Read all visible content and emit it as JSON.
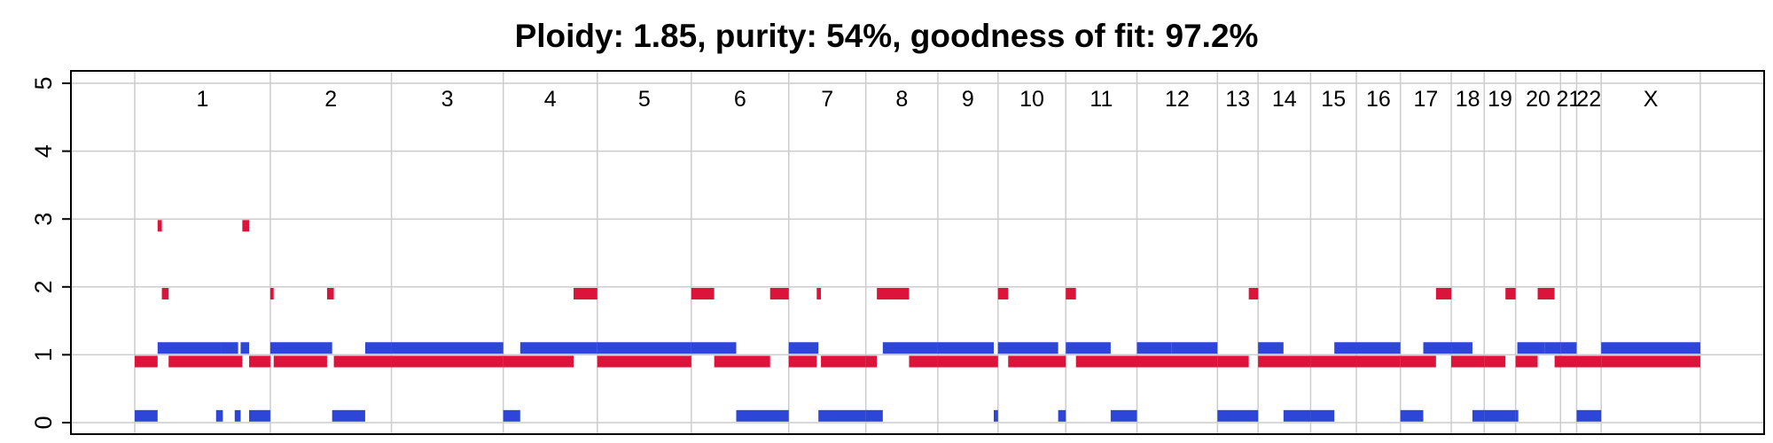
{
  "chart_data": {
    "type": "segments",
    "title": "Ploidy: 1.85, purity: 54%, goodness of fit: 97.2%",
    "ylim": [
      0,
      5
    ],
    "yticks": [
      "0",
      "1",
      "2",
      "3",
      "4",
      "5"
    ],
    "grid": true,
    "genome_bounds": [
      0,
      16
    ],
    "chromosomes": [
      {
        "label": "1",
        "start": 0.0,
        "end": 1.6
      },
      {
        "label": "2",
        "start": 1.6,
        "end": 3.03
      },
      {
        "label": "3",
        "start": 3.03,
        "end": 4.35
      },
      {
        "label": "4",
        "start": 4.35,
        "end": 5.46
      },
      {
        "label": "5",
        "start": 5.46,
        "end": 6.57
      },
      {
        "label": "6",
        "start": 6.57,
        "end": 7.72
      },
      {
        "label": "7",
        "start": 7.72,
        "end": 8.63
      },
      {
        "label": "8",
        "start": 8.63,
        "end": 9.48
      },
      {
        "label": "9",
        "start": 9.48,
        "end": 10.19
      },
      {
        "label": "10",
        "start": 10.19,
        "end": 10.99
      },
      {
        "label": "11",
        "start": 10.99,
        "end": 11.83
      },
      {
        "label": "12",
        "start": 11.83,
        "end": 12.78
      },
      {
        "label": "13",
        "start": 12.78,
        "end": 13.26
      },
      {
        "label": "14",
        "start": 13.26,
        "end": 13.88
      },
      {
        "label": "15",
        "start": 13.88,
        "end": 14.42
      },
      {
        "label": "16",
        "start": 14.42,
        "end": 14.94
      },
      {
        "label": "17",
        "start": 14.94,
        "end": 15.54
      },
      {
        "label": "18",
        "start": 15.54,
        "end": 15.93
      },
      {
        "label": "19",
        "start": 15.93,
        "end": 16.3
      },
      {
        "label": "20",
        "start": 16.3,
        "end": 16.83
      },
      {
        "label": "21",
        "start": 16.83,
        "end": 17.02
      },
      {
        "label": "22",
        "start": 17.02,
        "end": 17.31
      },
      {
        "label": "X",
        "start": 17.31,
        "end": 18.48
      }
    ],
    "series": [
      {
        "color": "#DC143C",
        "offset": -0.1,
        "segments": [
          [
            0.0,
            0.27,
            1
          ],
          [
            0.27,
            0.32,
            3
          ],
          [
            0.32,
            0.4,
            2
          ],
          [
            0.4,
            1.27,
            1
          ],
          [
            1.27,
            1.35,
            3
          ],
          [
            1.35,
            1.6,
            1
          ],
          [
            1.6,
            1.64,
            2
          ],
          [
            1.64,
            2.27,
            1
          ],
          [
            2.27,
            2.35,
            2
          ],
          [
            2.35,
            3.03,
            1
          ],
          [
            3.03,
            4.35,
            1
          ],
          [
            4.35,
            5.18,
            1
          ],
          [
            5.18,
            5.46,
            2
          ],
          [
            5.46,
            6.57,
            1
          ],
          [
            6.57,
            6.84,
            2
          ],
          [
            6.84,
            7.5,
            1
          ],
          [
            7.5,
            7.72,
            2
          ],
          [
            7.72,
            8.05,
            1
          ],
          [
            8.05,
            8.1,
            2
          ],
          [
            8.1,
            8.63,
            1
          ],
          [
            8.63,
            8.76,
            1
          ],
          [
            8.76,
            9.14,
            2
          ],
          [
            9.14,
            9.48,
            1
          ],
          [
            9.48,
            10.19,
            1
          ],
          [
            10.19,
            10.31,
            2
          ],
          [
            10.31,
            10.99,
            1
          ],
          [
            10.99,
            11.11,
            2
          ],
          [
            11.11,
            11.83,
            1
          ],
          [
            11.83,
            12.78,
            1
          ],
          [
            12.78,
            13.15,
            1
          ],
          [
            13.15,
            13.26,
            2
          ],
          [
            13.26,
            13.88,
            1
          ],
          [
            13.88,
            14.42,
            1
          ],
          [
            14.42,
            14.94,
            1
          ],
          [
            14.94,
            15.36,
            1
          ],
          [
            15.36,
            15.54,
            2
          ],
          [
            15.54,
            15.93,
            1
          ],
          [
            15.93,
            16.18,
            1
          ],
          [
            16.18,
            16.3,
            2
          ],
          [
            16.3,
            16.56,
            1
          ],
          [
            16.56,
            16.76,
            2
          ],
          [
            16.76,
            17.02,
            1
          ],
          [
            17.02,
            17.31,
            1
          ],
          [
            17.31,
            18.48,
            1
          ]
        ]
      },
      {
        "color": "#2D46D8",
        "offset": 0.1,
        "segments": [
          [
            0.0,
            0.27,
            0
          ],
          [
            0.27,
            1.02,
            1
          ],
          [
            0.96,
            1.04,
            0
          ],
          [
            1.02,
            1.22,
            1
          ],
          [
            1.18,
            1.25,
            0
          ],
          [
            1.25,
            1.35,
            1
          ],
          [
            1.35,
            1.6,
            0
          ],
          [
            1.6,
            2.33,
            1
          ],
          [
            2.33,
            2.72,
            0
          ],
          [
            2.72,
            3.03,
            1
          ],
          [
            3.03,
            4.35,
            1
          ],
          [
            4.35,
            4.55,
            0
          ],
          [
            4.55,
            5.46,
            1
          ],
          [
            5.46,
            6.57,
            1
          ],
          [
            6.57,
            7.1,
            1
          ],
          [
            7.1,
            7.72,
            0
          ],
          [
            7.72,
            8.07,
            1
          ],
          [
            8.07,
            8.63,
            0
          ],
          [
            8.63,
            8.83,
            0
          ],
          [
            8.83,
            9.48,
            1
          ],
          [
            9.48,
            10.14,
            1
          ],
          [
            10.14,
            10.19,
            0
          ],
          [
            10.19,
            10.9,
            1
          ],
          [
            10.9,
            10.99,
            0
          ],
          [
            10.99,
            11.52,
            1
          ],
          [
            11.52,
            11.83,
            0
          ],
          [
            11.83,
            12.24,
            1
          ],
          [
            12.24,
            12.78,
            1
          ],
          [
            12.78,
            13.26,
            0
          ],
          [
            13.26,
            13.56,
            1
          ],
          [
            13.56,
            13.88,
            0
          ],
          [
            13.88,
            14.16,
            0
          ],
          [
            14.16,
            14.42,
            1
          ],
          [
            14.42,
            14.94,
            1
          ],
          [
            14.94,
            15.21,
            0
          ],
          [
            15.21,
            15.54,
            1
          ],
          [
            15.54,
            15.79,
            1
          ],
          [
            15.79,
            15.93,
            0
          ],
          [
            15.93,
            16.3,
            0
          ],
          [
            16.3,
            16.32,
            0
          ],
          [
            16.32,
            16.64,
            1
          ],
          [
            16.64,
            16.83,
            1
          ],
          [
            16.83,
            17.02,
            1
          ],
          [
            17.02,
            17.31,
            0
          ],
          [
            17.31,
            18.48,
            1
          ]
        ]
      }
    ]
  }
}
